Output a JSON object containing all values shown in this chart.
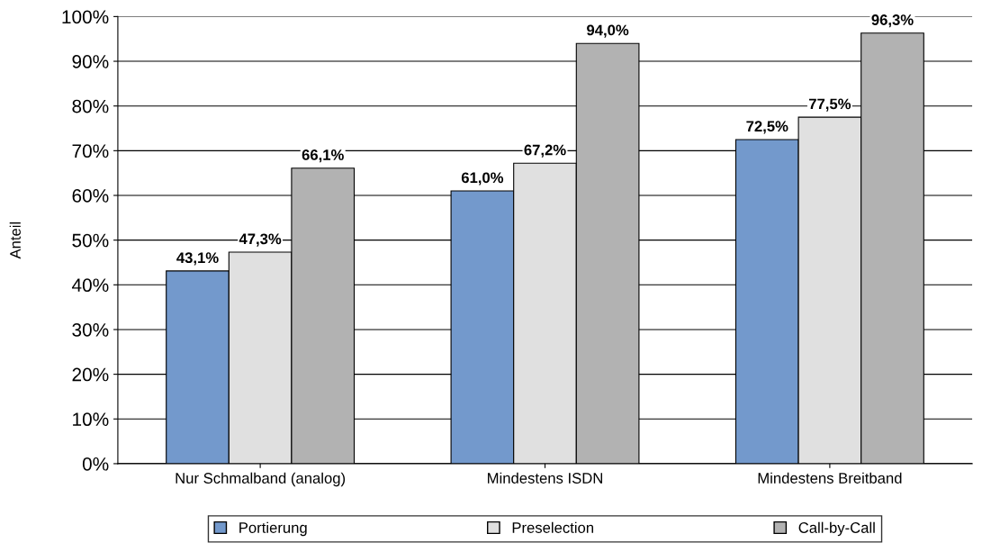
{
  "chart_data": {
    "type": "bar",
    "ylabel": "Anteil",
    "categories": [
      "Nur Schmalband (analog)",
      "Mindestens ISDN",
      "Mindestens Breitband"
    ],
    "series": [
      {
        "name": "Portierung",
        "color": "#7399cc",
        "values": [
          43.1,
          61.0,
          72.5
        ],
        "value_labels": [
          "43,1%",
          "61,0%",
          "72,5%"
        ]
      },
      {
        "name": "Preselection",
        "color": "#e0e0e0",
        "values": [
          47.3,
          67.2,
          77.5
        ],
        "value_labels": [
          "47,3%",
          "67,2%",
          "77,5%"
        ]
      },
      {
        "name": "Call-by-Call",
        "color": "#b2b2b2",
        "values": [
          66.1,
          94.0,
          96.3
        ],
        "value_labels": [
          "66,1%",
          "94,0%",
          "96,3%"
        ]
      }
    ],
    "ylim": [
      0,
      100
    ],
    "yticks": [
      {
        "value": 0,
        "label": "0%"
      },
      {
        "value": 10,
        "label": "10%"
      },
      {
        "value": 20,
        "label": "20%"
      },
      {
        "value": 30,
        "label": "30%"
      },
      {
        "value": 40,
        "label": "40%"
      },
      {
        "value": 50,
        "label": "50%"
      },
      {
        "value": 60,
        "label": "60%"
      },
      {
        "value": 70,
        "label": "70%"
      },
      {
        "value": 80,
        "label": "80%"
      },
      {
        "value": 90,
        "label": "90%"
      },
      {
        "value": 100,
        "label": "100%"
      }
    ],
    "grid": "y",
    "legend": "bottom"
  }
}
